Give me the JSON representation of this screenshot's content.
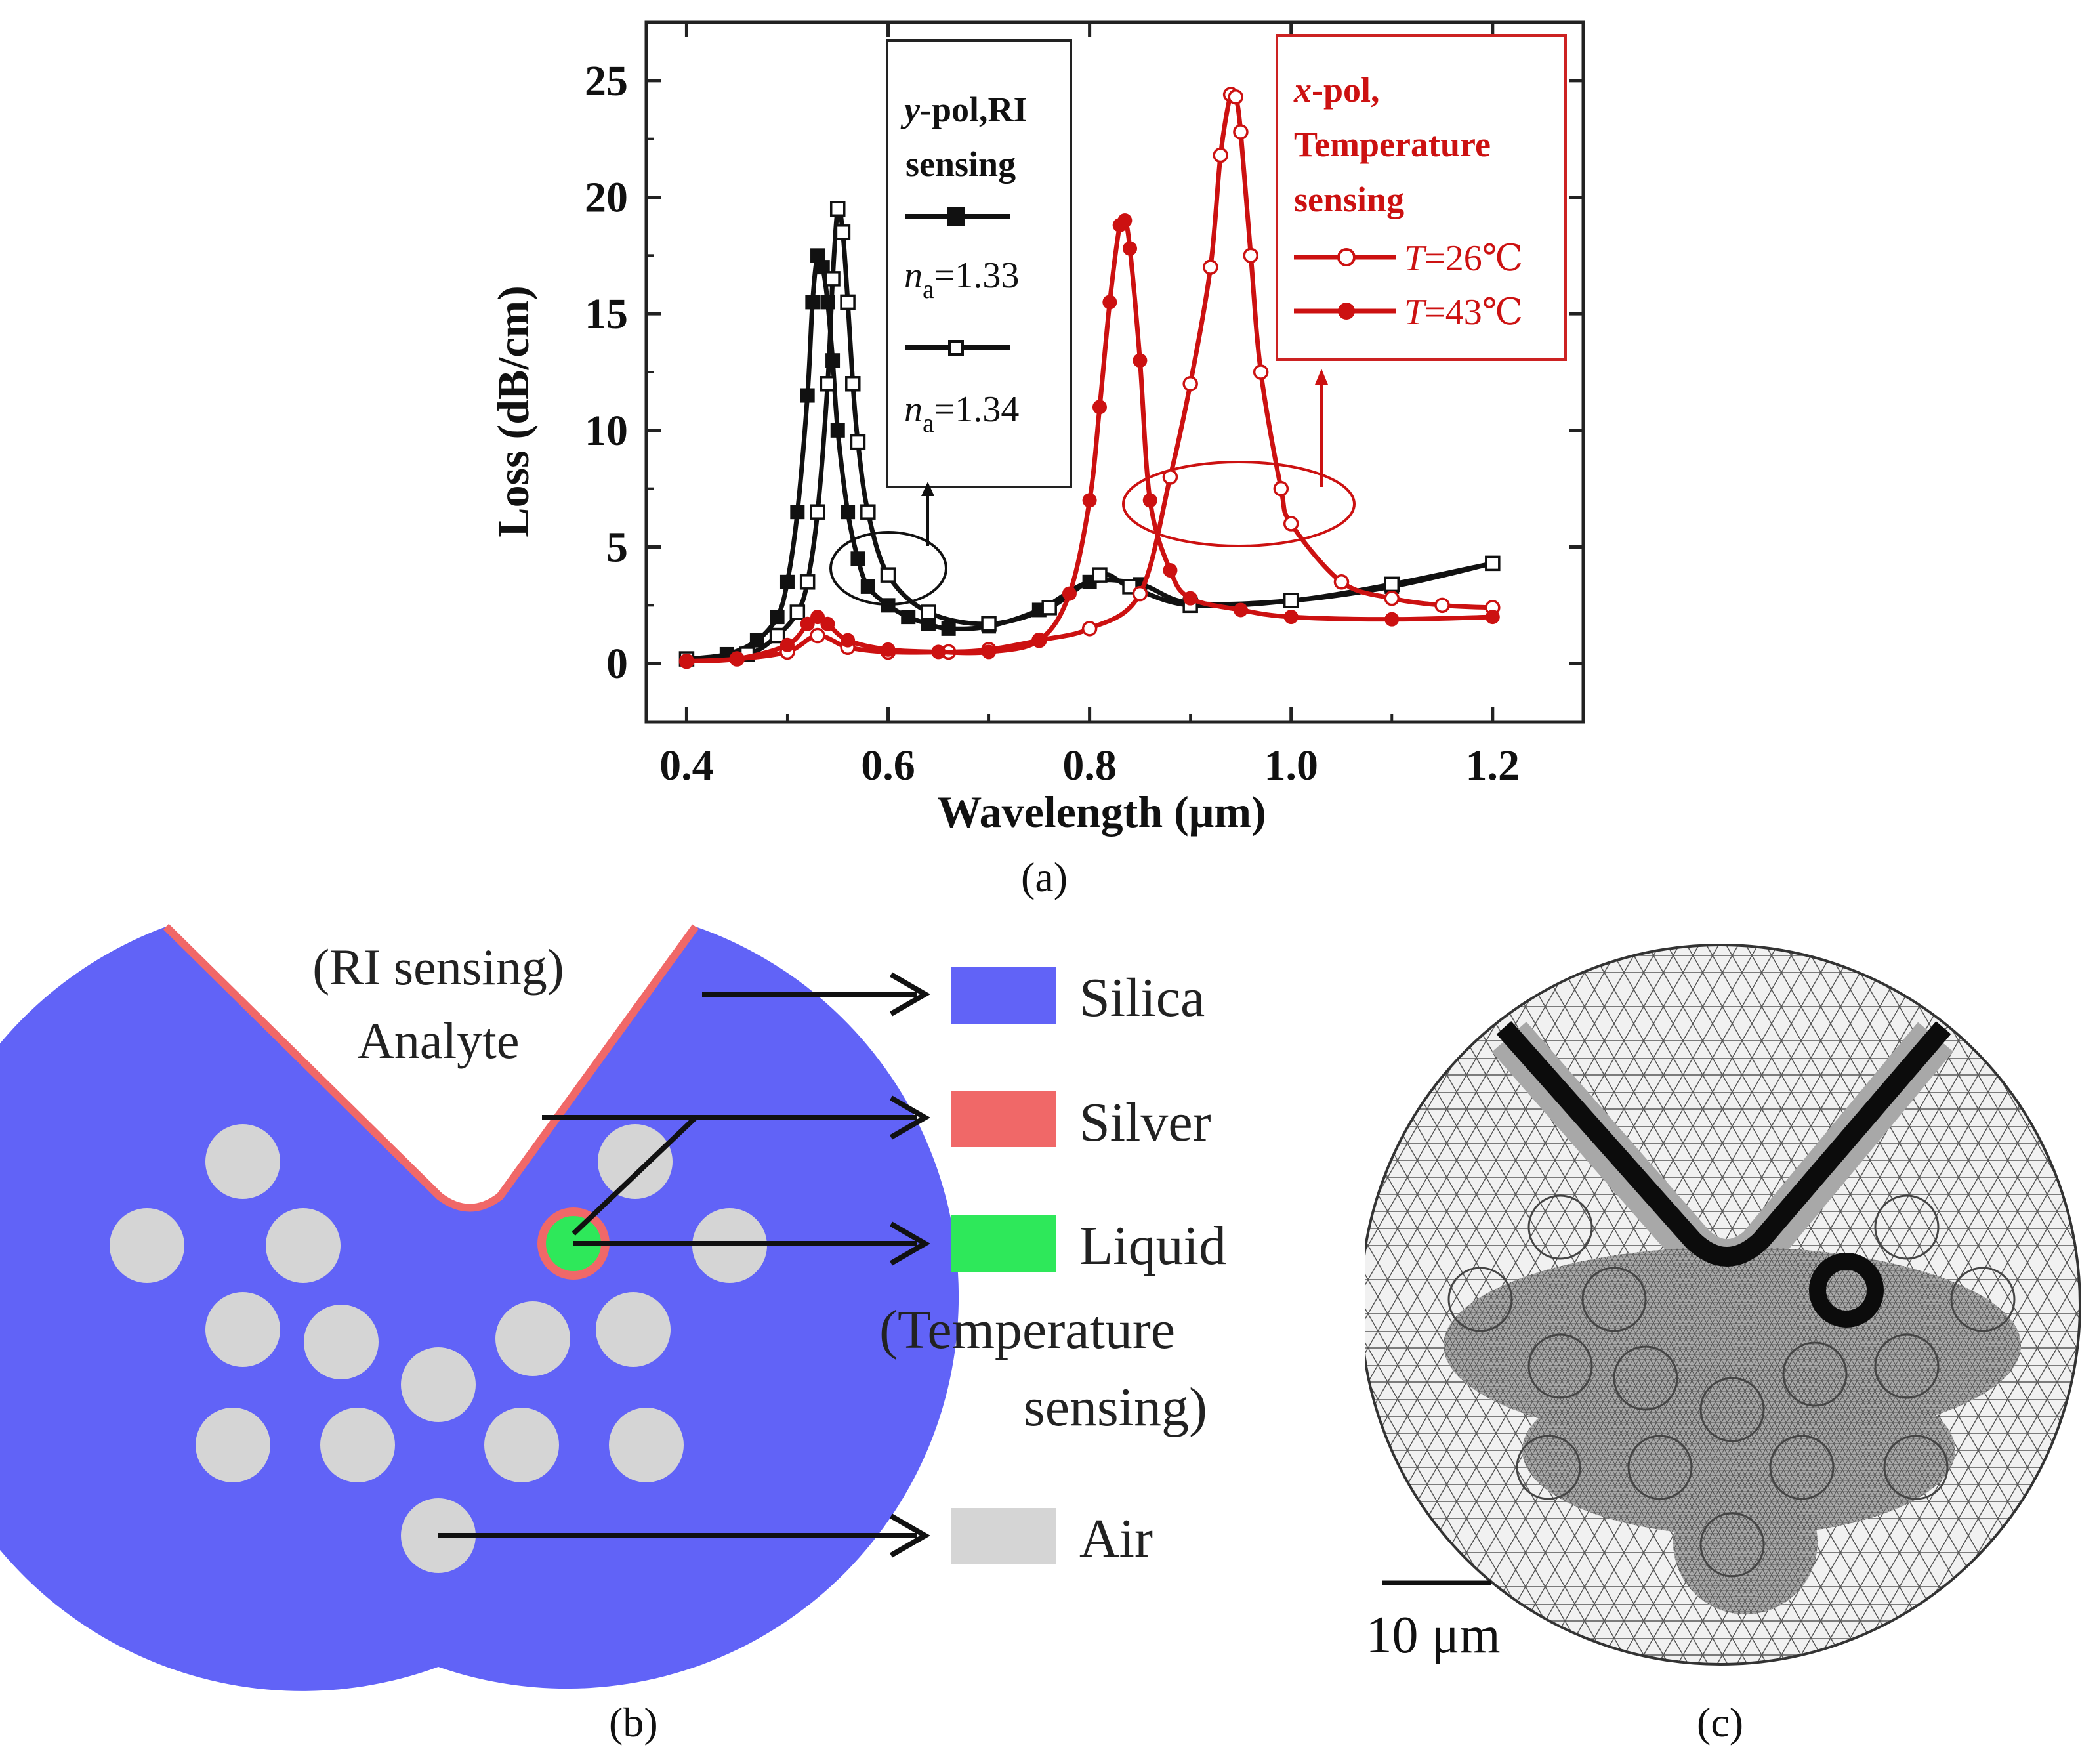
{
  "panels": {
    "a": "(a)",
    "b": "(b)",
    "c": "(c)"
  },
  "chart_data": {
    "type": "line",
    "title": "",
    "xlabel": "Wavelength (μm)",
    "ylabel": "Loss (dB/cm)",
    "xlim": [
      0.36,
      1.29
    ],
    "ylim": [
      -2.5,
      27.5
    ],
    "xticks": [
      0.4,
      0.6,
      0.8,
      1.0,
      1.2
    ],
    "xtick_labels": [
      "0.4",
      "0.6",
      "0.8",
      "1.0",
      "1.2"
    ],
    "yticks": [
      0,
      5,
      10,
      15,
      20,
      25
    ],
    "ytick_labels": [
      "0",
      "5",
      "10",
      "15",
      "20",
      "25"
    ],
    "legend_left": {
      "title_italic": "y",
      "title_rest": "-pol,RI",
      "title_line2": "sensing",
      "entries": [
        {
          "sym": "n",
          "sub": "a",
          "val": "=1.33"
        },
        {
          "sym": "n",
          "sub": "a",
          "val": "=1.34"
        }
      ]
    },
    "legend_right": {
      "title_italic": "x",
      "title_rest": "-pol,",
      "title_line2": "Temperature",
      "title_line3": "sensing",
      "entries": [
        {
          "sym": "T",
          "val": "=26℃"
        },
        {
          "sym": "T",
          "val": "=43℃"
        }
      ]
    },
    "series": [
      {
        "name": "y-pol, na=1.33",
        "color": "#111111",
        "marker": "filled-square",
        "x": [
          0.4,
          0.44,
          0.47,
          0.49,
          0.5,
          0.51,
          0.52,
          0.525,
          0.53,
          0.535,
          0.54,
          0.545,
          0.55,
          0.56,
          0.57,
          0.58,
          0.6,
          0.62,
          0.64,
          0.66,
          0.7,
          0.75,
          0.8,
          0.85,
          0.9,
          1.0,
          1.1,
          1.2
        ],
        "y": [
          0.2,
          0.4,
          1.0,
          2.0,
          3.5,
          6.5,
          11.5,
          15.5,
          17.5,
          17.0,
          15.5,
          13.0,
          10.0,
          6.5,
          4.5,
          3.3,
          2.5,
          2.0,
          1.7,
          1.5,
          1.6,
          2.3,
          3.5,
          3.4,
          2.6,
          2.7,
          3.3,
          4.3
        ]
      },
      {
        "name": "y-pol, na=1.34",
        "color": "#111111",
        "marker": "open-square",
        "x": [
          0.4,
          0.46,
          0.49,
          0.51,
          0.52,
          0.53,
          0.54,
          0.545,
          0.55,
          0.555,
          0.56,
          0.565,
          0.57,
          0.58,
          0.6,
          0.64,
          0.7,
          0.76,
          0.81,
          0.84,
          0.9,
          1.0,
          1.1,
          1.2
        ],
        "y": [
          0.2,
          0.4,
          1.2,
          2.2,
          3.5,
          6.5,
          12.0,
          16.5,
          19.5,
          18.5,
          15.5,
          12.0,
          9.5,
          6.5,
          3.8,
          2.2,
          1.7,
          2.4,
          3.8,
          3.3,
          2.5,
          2.7,
          3.4,
          4.3
        ]
      },
      {
        "name": "x-pol, T=26℃",
        "color": "#cc1111",
        "marker": "open-circle",
        "x": [
          0.4,
          0.45,
          0.5,
          0.53,
          0.56,
          0.6,
          0.66,
          0.7,
          0.75,
          0.8,
          0.85,
          0.88,
          0.9,
          0.92,
          0.93,
          0.94,
          0.945,
          0.95,
          0.96,
          0.97,
          0.99,
          1.0,
          1.05,
          1.1,
          1.15,
          1.2
        ],
        "y": [
          0.1,
          0.2,
          0.5,
          1.2,
          0.7,
          0.5,
          0.5,
          0.6,
          1.0,
          1.5,
          3.0,
          8.0,
          12.0,
          17.0,
          21.8,
          24.4,
          24.3,
          22.8,
          17.5,
          12.5,
          7.5,
          6.0,
          3.5,
          2.8,
          2.5,
          2.4
        ]
      },
      {
        "name": "x-pol, T=43℃",
        "color": "#cc1111",
        "marker": "filled-circle",
        "x": [
          0.4,
          0.45,
          0.5,
          0.52,
          0.53,
          0.54,
          0.56,
          0.6,
          0.65,
          0.7,
          0.75,
          0.78,
          0.8,
          0.81,
          0.82,
          0.83,
          0.835,
          0.84,
          0.85,
          0.86,
          0.88,
          0.9,
          0.95,
          1.0,
          1.1,
          1.2
        ],
        "y": [
          0.1,
          0.2,
          0.8,
          1.7,
          2.0,
          1.7,
          1.0,
          0.6,
          0.5,
          0.5,
          1.0,
          3.0,
          7.0,
          11.0,
          15.5,
          18.8,
          19.0,
          17.8,
          13.0,
          7.0,
          4.0,
          2.8,
          2.3,
          2.0,
          1.9,
          2.0
        ]
      }
    ]
  },
  "diagram_b": {
    "analyte_line1": "(RI sensing)",
    "analyte_line2": "Analyte",
    "legend": [
      {
        "label": "Silica",
        "color": "#6163f7"
      },
      {
        "label": "Silver",
        "color": "#f06868"
      },
      {
        "label": "Liquid",
        "color": "#2ee85a"
      },
      {
        "label": "(Temperature",
        "color": ""
      },
      {
        "label": "sensing)",
        "color": ""
      },
      {
        "label": "Air",
        "color": "#d5d5d5"
      }
    ]
  },
  "mesh_c": {
    "scale_label": "10 μm"
  }
}
